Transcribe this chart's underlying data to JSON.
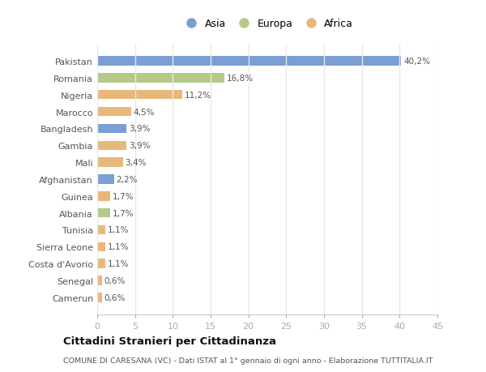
{
  "countries": [
    "Pakistan",
    "Romania",
    "Nigeria",
    "Marocco",
    "Bangladesh",
    "Gambia",
    "Mali",
    "Afghanistan",
    "Guinea",
    "Albania",
    "Tunisia",
    "Sierra Leone",
    "Costa d'Avorio",
    "Senegal",
    "Camerun"
  ],
  "values": [
    40.2,
    16.8,
    11.2,
    4.5,
    3.9,
    3.9,
    3.4,
    2.2,
    1.7,
    1.7,
    1.1,
    1.1,
    1.1,
    0.6,
    0.6
  ],
  "continents": [
    "Asia",
    "Europa",
    "Africa",
    "Africa",
    "Asia",
    "Africa",
    "Africa",
    "Asia",
    "Africa",
    "Europa",
    "Africa",
    "Africa",
    "Africa",
    "Africa",
    "Africa"
  ],
  "colors": {
    "Asia": "#7b9fd4",
    "Europa": "#b5c98a",
    "Africa": "#e8b87a"
  },
  "title": "Cittadini Stranieri per Cittadinanza",
  "subtitle": "COMUNE DI CARESANA (VC) - Dati ISTAT al 1° gennaio di ogni anno - Elaborazione TUTTITALIA.IT",
  "xlim": [
    0,
    45
  ],
  "xticks": [
    0,
    5,
    10,
    15,
    20,
    25,
    30,
    35,
    40,
    45
  ],
  "background_color": "#ffffff",
  "grid_color": "#e8e8e8",
  "bar_height": 0.55
}
